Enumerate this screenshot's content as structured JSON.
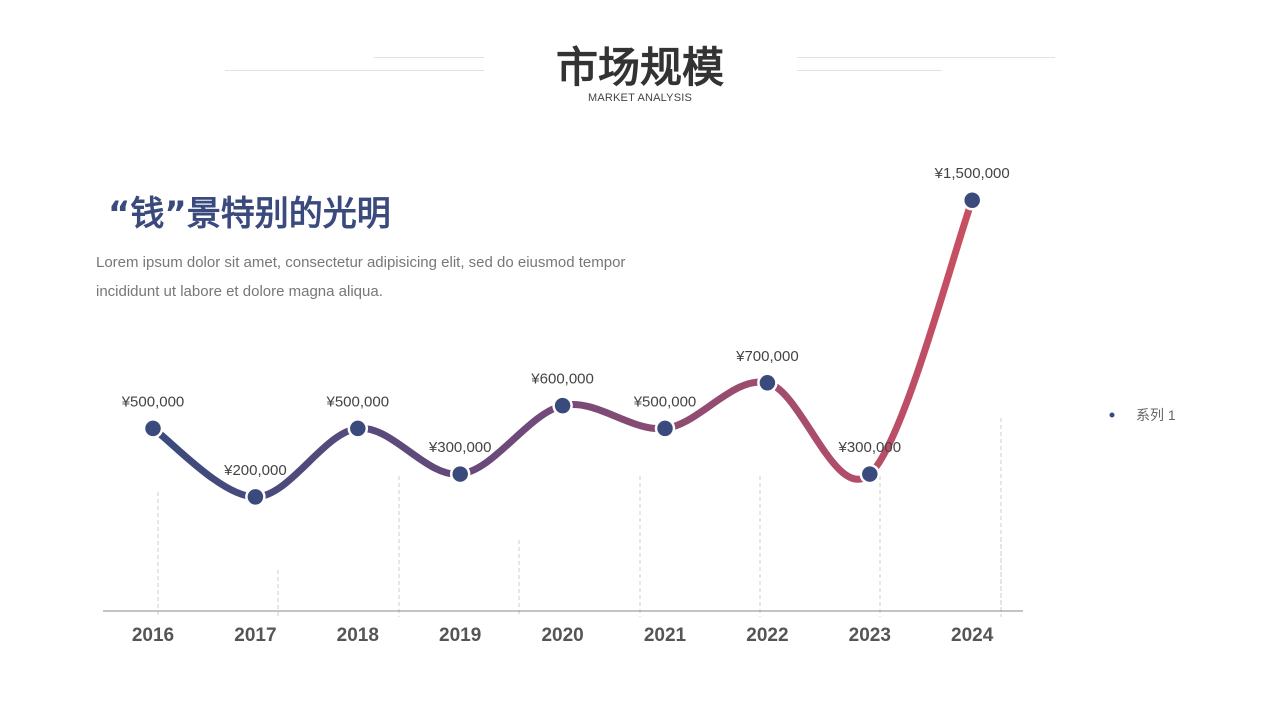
{
  "header": {
    "title": "市场规模",
    "subtitle": "MARKET ANALYSIS"
  },
  "intro": {
    "headline": "“钱”景特别的光明",
    "description": "Lorem ipsum dolor sit amet, consectetur adipisicing elit, sed do eiusmod tempor incididunt ut labore et dolore magna aliqua."
  },
  "colors": {
    "start": "#3a4a7c",
    "end": "#c94f62",
    "marker": "#3a4a7c",
    "axis": "#888888",
    "dash": "#cccccc"
  },
  "chart_data": {
    "type": "line",
    "smooth": true,
    "categories": [
      "2016",
      "2017",
      "2018",
      "2019",
      "2020",
      "2021",
      "2022",
      "2023",
      "2024"
    ],
    "series": [
      {
        "name": "系列 1",
        "values": [
          500000,
          200000,
          500000,
          300000,
          600000,
          500000,
          700000,
          300000,
          1500000
        ],
        "labels": [
          "¥500,000",
          "¥200,000",
          "¥500,000",
          "¥300,000",
          "¥600,000",
          "¥500,000",
          "¥700,000",
          "¥300,000",
          "¥1,500,000"
        ]
      }
    ],
    "ylim": [
      -300000,
      1650000
    ],
    "legend_position": "right",
    "grid": false
  }
}
